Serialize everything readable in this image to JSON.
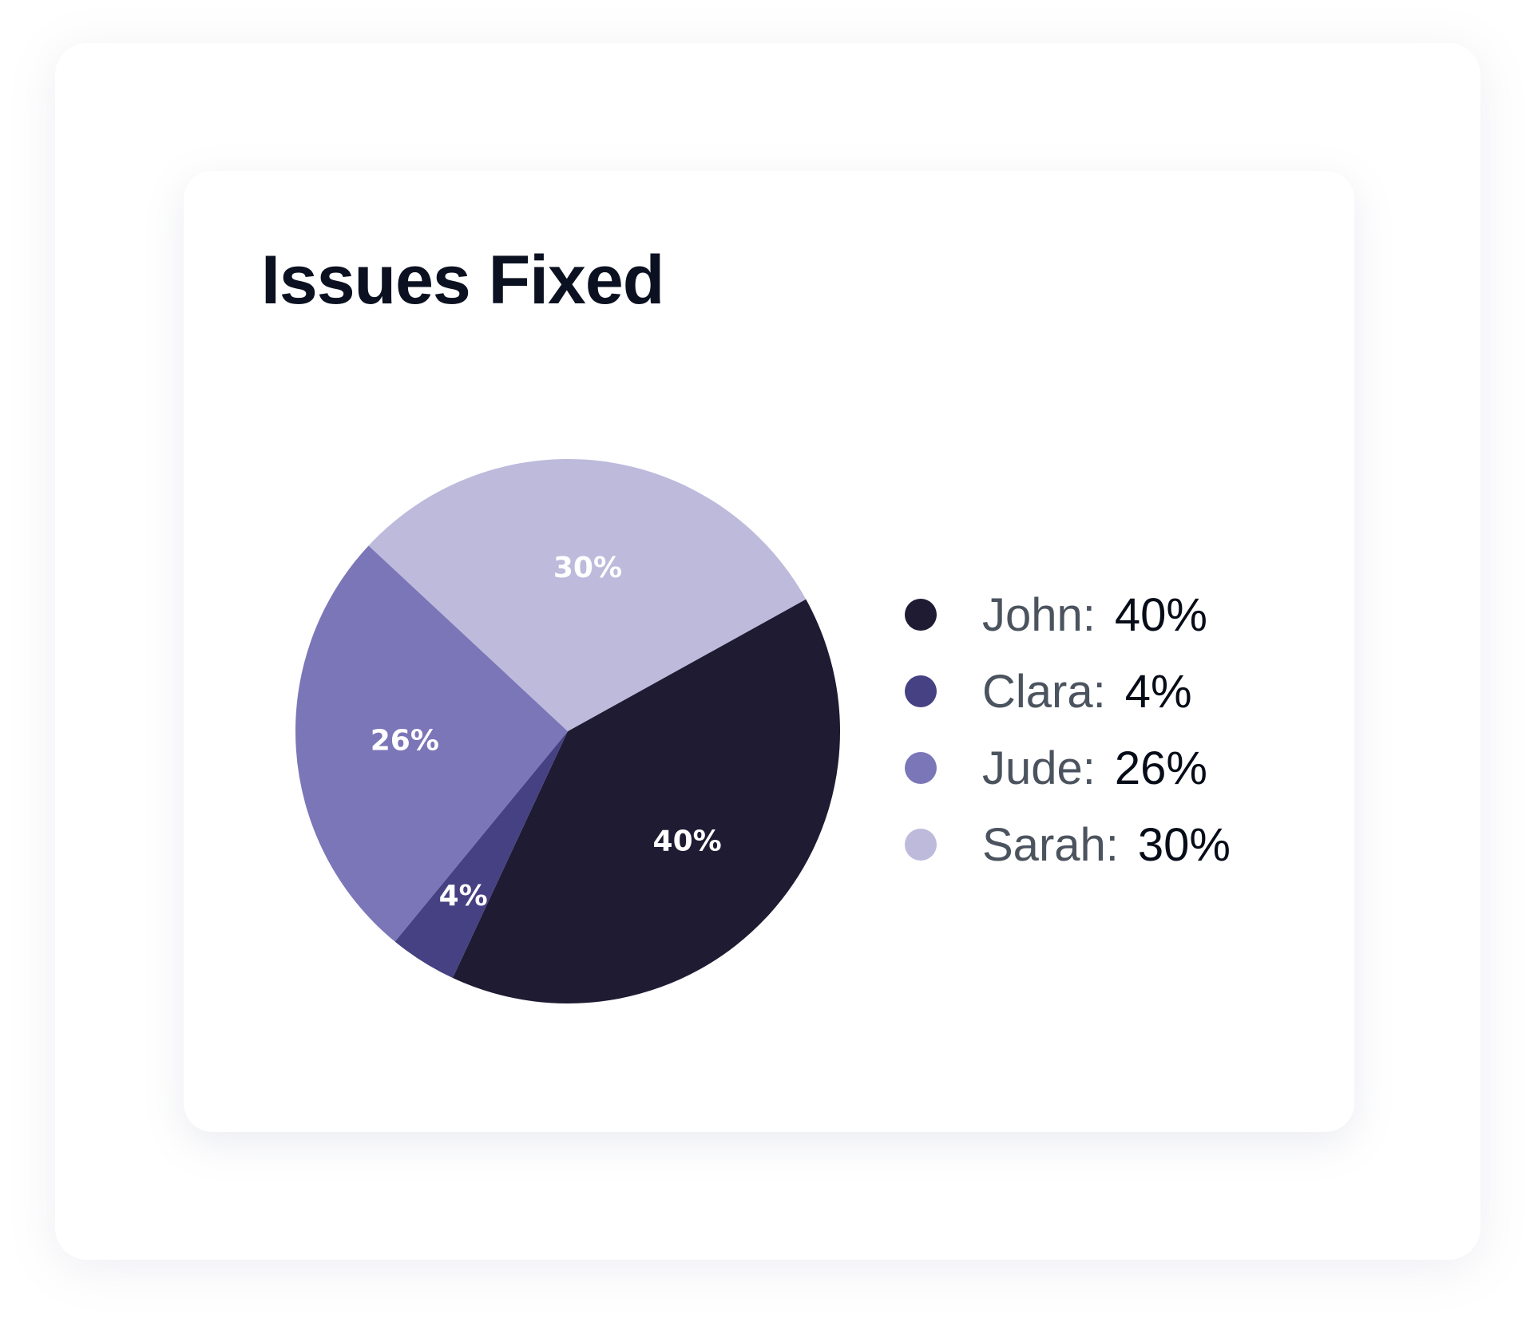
{
  "chart_data": {
    "type": "pie",
    "title": "Issues Fixed",
    "categories": [
      "John",
      "Clara",
      "Jude",
      "Sarah"
    ],
    "values": [
      40,
      4,
      26,
      30
    ],
    "labels": [
      "40%",
      "4%",
      "26%",
      "30%"
    ],
    "colors": [
      "#1e1b33",
      "#454182",
      "#7b76b8",
      "#bdbadc"
    ],
    "legend_position": "right",
    "legend": [
      {
        "name": "John:",
        "value": "40%"
      },
      {
        "name": "Clara:",
        "value": "4%"
      },
      {
        "name": "Jude:",
        "value": "26%"
      },
      {
        "name": "Sarah:",
        "value": "30%"
      }
    ]
  }
}
